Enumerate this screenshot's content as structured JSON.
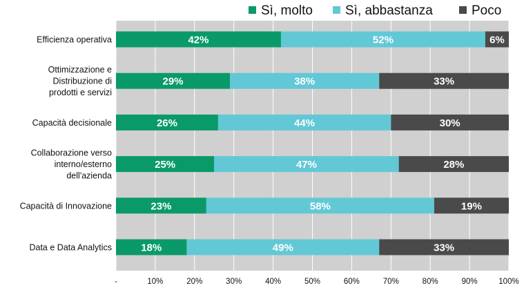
{
  "chart_data": {
    "type": "bar",
    "orientation": "horizontal",
    "stacked": true,
    "categories": [
      [
        "Efficienza operativa"
      ],
      [
        "Ottimizzazione e",
        "Distribuzione di",
        "prodotti e servizi"
      ],
      [
        "Capacità decisionale"
      ],
      [
        "Collaborazione verso",
        "interno/esterno",
        "dell'azienda"
      ],
      [
        "Capacità di Innovazione"
      ],
      [
        "Data e Data Analytics"
      ]
    ],
    "series": [
      {
        "name": "Sì, molto",
        "color": "#0a9a6a",
        "values": [
          42,
          29,
          26,
          25,
          23,
          18
        ],
        "labels": [
          "42%",
          "29%",
          "26%",
          "25%",
          "23%",
          "18%"
        ]
      },
      {
        "name": "Sì, abbastanza",
        "color": "#62c8d6",
        "values": [
          52,
          38,
          44,
          47,
          58,
          49
        ],
        "labels": [
          "52%",
          "38%",
          "44%",
          "47%",
          "58%",
          "49%"
        ]
      },
      {
        "name": "Poco",
        "color": "#4a4a4a",
        "values": [
          6,
          33,
          30,
          28,
          19,
          33
        ],
        "labels": [
          "6%",
          "33%",
          "30%",
          "28%",
          "19%",
          "33%"
        ]
      }
    ],
    "xlim": [
      0,
      100
    ],
    "x_ticks": [
      "-",
      "10%",
      "20%",
      "30%",
      "40%",
      "50%",
      "60%",
      "70%",
      "80%",
      "90%",
      "100%"
    ],
    "grid": true,
    "plot_background": "#d0d0d0",
    "legend_position": "top-right"
  }
}
